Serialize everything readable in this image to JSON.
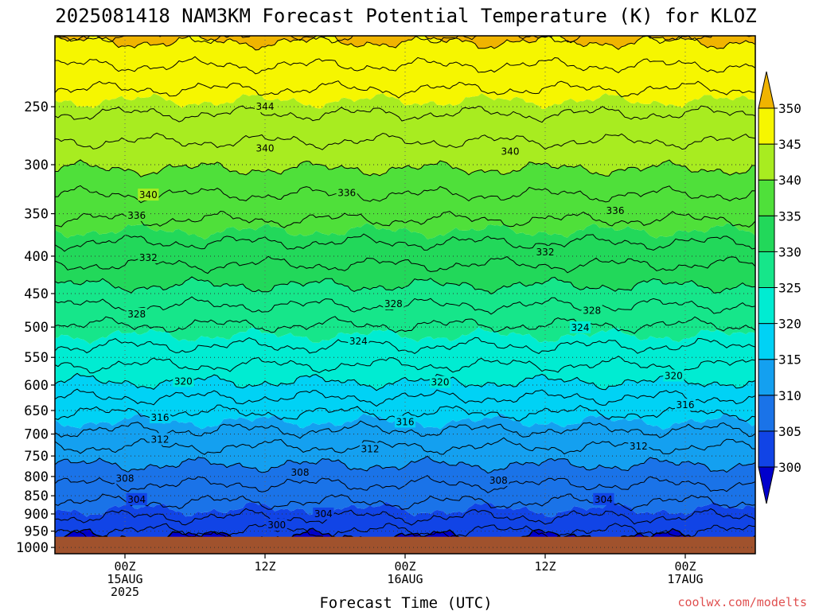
{
  "title": "2025081418 NAM3KM Forecast Potential Temperature (K) for KLOZ",
  "credit": "coolwx.com/modelts",
  "colors": {
    "ground": "#a0522d",
    "bands": [
      {
        "lo": 295,
        "hi": 300,
        "color": "#0000cc"
      },
      {
        "lo": 300,
        "hi": 305,
        "color": "#1144e6"
      },
      {
        "lo": 305,
        "hi": 310,
        "color": "#1a73e8"
      },
      {
        "lo": 310,
        "hi": 315,
        "color": "#14a0f0"
      },
      {
        "lo": 315,
        "hi": 320,
        "color": "#00d2f5"
      },
      {
        "lo": 320,
        "hi": 325,
        "color": "#00ecd2"
      },
      {
        "lo": 325,
        "hi": 330,
        "color": "#16e68a"
      },
      {
        "lo": 330,
        "hi": 335,
        "color": "#22d85a"
      },
      {
        "lo": 335,
        "hi": 340,
        "color": "#4fe03a"
      },
      {
        "lo": 340,
        "hi": 345,
        "color": "#a8ec20"
      },
      {
        "lo": 345,
        "hi": 350,
        "color": "#f6f600"
      },
      {
        "lo": 350,
        "hi": 355,
        "color": "#f0b400"
      }
    ]
  },
  "chart_data": {
    "type": "heatmap",
    "title": "2025081418 NAM3KM Forecast Potential Temperature (K) for KLOZ",
    "xlabel": "Forecast Time (UTC)",
    "ylabel": "",
    "x_ticks": [
      {
        "lines": [
          "00Z",
          "15AUG",
          "2025"
        ]
      },
      {
        "lines": [
          "12Z"
        ]
      },
      {
        "lines": [
          "00Z",
          "16AUG"
        ]
      },
      {
        "lines": [
          "12Z"
        ]
      },
      {
        "lines": [
          "00Z",
          "17AUG"
        ]
      }
    ],
    "x_range_hours": [
      -6,
      54
    ],
    "x_tick_hours": [
      0,
      12,
      24,
      36,
      48
    ],
    "y_scale": "log-pressure",
    "y_range_mb": [
      1020,
      200
    ],
    "y_ticks": [
      "250",
      "300",
      "350",
      "400",
      "450",
      "500",
      "550",
      "600",
      "650",
      "700",
      "750",
      "800",
      "850",
      "900",
      "950",
      "1000"
    ],
    "y_tick_values": [
      250,
      300,
      350,
      400,
      450,
      500,
      550,
      600,
      650,
      700,
      750,
      800,
      850,
      900,
      950,
      1000
    ],
    "colorbar_ticks": [
      "300",
      "305",
      "310",
      "315",
      "320",
      "325",
      "330",
      "335",
      "340",
      "345",
      "350"
    ],
    "colorbar_values": [
      300,
      305,
      310,
      315,
      320,
      325,
      330,
      335,
      340,
      345,
      350
    ],
    "grid": "dotted",
    "surface_pressure_mb": 967,
    "contour_interval_K": 2,
    "profile": {
      "pressure_mb": [
        967,
        950,
        925,
        900,
        875,
        850,
        800,
        750,
        700,
        650,
        600,
        550,
        500,
        450,
        400,
        350,
        300,
        250,
        200
      ],
      "theta_K": [
        300.5,
        302,
        303.2,
        304.4,
        305.6,
        306.8,
        308.8,
        310.9,
        313.5,
        316.3,
        319.6,
        322.9,
        325.8,
        329.2,
        332.8,
        336.5,
        340.3,
        344.5,
        350.5
      ]
    },
    "contour_labels": [
      {
        "value": "344",
        "hour": 12,
        "p": 250
      },
      {
        "value": "340",
        "hour": 2,
        "p": 330
      },
      {
        "value": "340",
        "hour": 12,
        "p": 285
      },
      {
        "value": "340",
        "hour": 33,
        "p": 288
      },
      {
        "value": "336",
        "hour": 1,
        "p": 352
      },
      {
        "value": "336",
        "hour": 19,
        "p": 328
      },
      {
        "value": "336",
        "hour": 42,
        "p": 347
      },
      {
        "value": "332",
        "hour": 2,
        "p": 402
      },
      {
        "value": "332",
        "hour": 36,
        "p": 395
      },
      {
        "value": "328",
        "hour": 1,
        "p": 480
      },
      {
        "value": "328",
        "hour": 23,
        "p": 465
      },
      {
        "value": "328",
        "hour": 40,
        "p": 475
      },
      {
        "value": "324",
        "hour": 20,
        "p": 523
      },
      {
        "value": "324",
        "hour": 39,
        "p": 501
      },
      {
        "value": "320",
        "hour": 5,
        "p": 593
      },
      {
        "value": "320",
        "hour": 27,
        "p": 595
      },
      {
        "value": "320",
        "hour": 47,
        "p": 583
      },
      {
        "value": "316",
        "hour": 3,
        "p": 665
      },
      {
        "value": "316",
        "hour": 24,
        "p": 674
      },
      {
        "value": "316",
        "hour": 48,
        "p": 639
      },
      {
        "value": "312",
        "hour": 3,
        "p": 712
      },
      {
        "value": "312",
        "hour": 21,
        "p": 734
      },
      {
        "value": "312",
        "hour": 44,
        "p": 728
      },
      {
        "value": "308",
        "hour": 0,
        "p": 805
      },
      {
        "value": "308",
        "hour": 15,
        "p": 790
      },
      {
        "value": "308",
        "hour": 32,
        "p": 810
      },
      {
        "value": "304",
        "hour": 1,
        "p": 860
      },
      {
        "value": "304",
        "hour": 17,
        "p": 900
      },
      {
        "value": "304",
        "hour": 41,
        "p": 860
      },
      {
        "value": "300",
        "hour": 13,
        "p": 932
      }
    ]
  }
}
